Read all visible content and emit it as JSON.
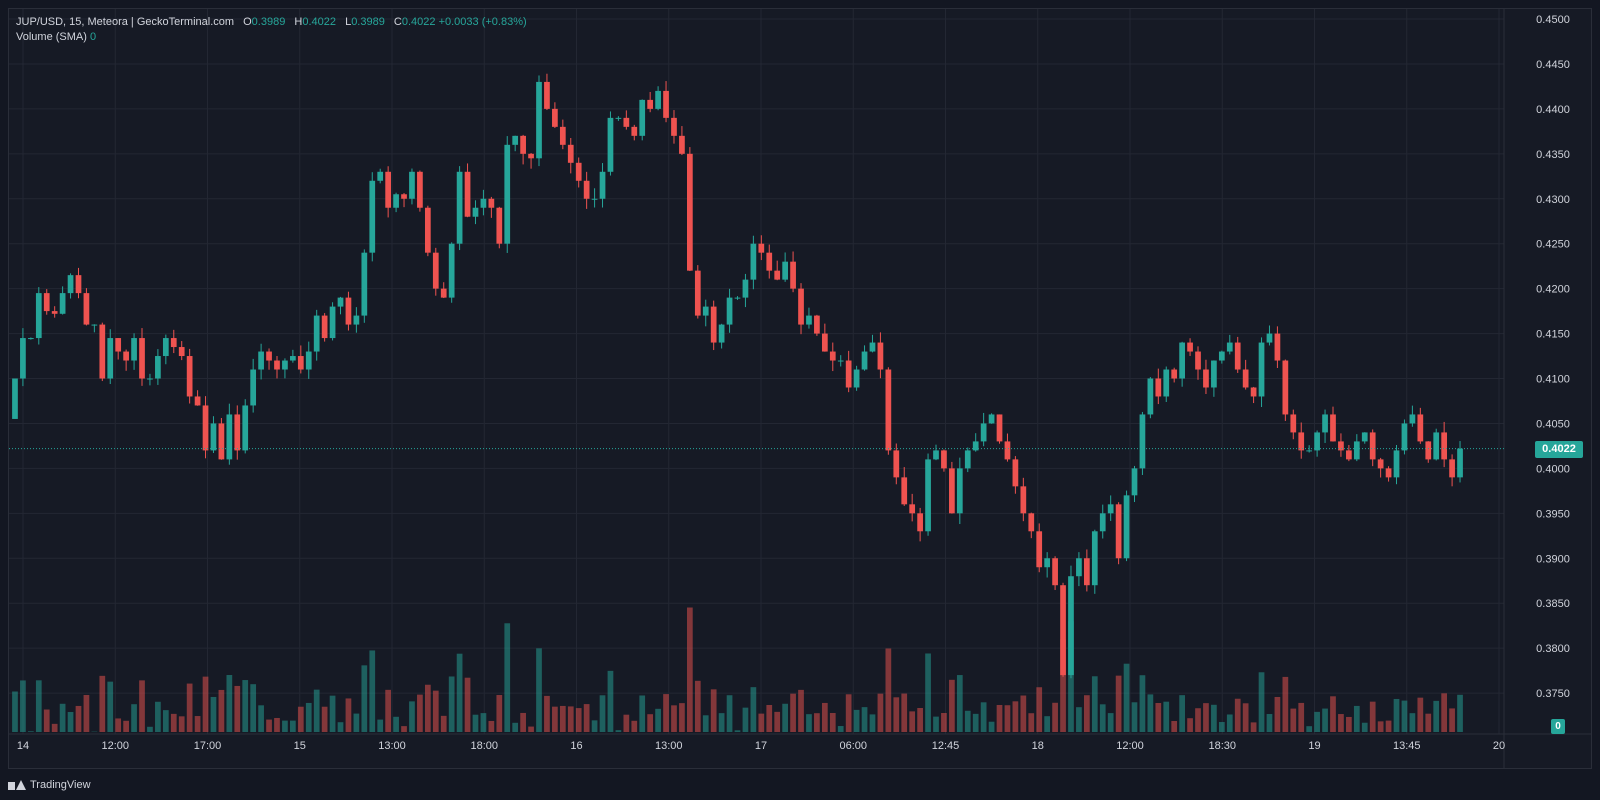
{
  "legend": {
    "symbol": "JUP/USD, 15, Meteora | GeckoTerminal.com",
    "o_label": "O",
    "o_value": "0.3989",
    "h_label": "H",
    "h_value": "0.4022",
    "l_label": "L",
    "l_value": "0.3989",
    "c_label": "C",
    "c_value": "0.4022",
    "change": "+0.0033 (+0.83%)",
    "volume_label": "Volume (SMA)",
    "volume_value": "0"
  },
  "current_price_tag": "0.4022",
  "volume_tag": "0",
  "footer": {
    "brand": "TradingView"
  },
  "colors": {
    "up": "#26a69a",
    "down": "#ef5350",
    "grid": "#232733",
    "bg": "#161a25"
  },
  "chart_data": {
    "type": "candlestick",
    "title": "JUP/USD, 15, Meteora | GeckoTerminal.com",
    "ylim": [
      0.37,
      0.45
    ],
    "y_ticks": [
      "0.4500",
      "0.4450",
      "0.4400",
      "0.4350",
      "0.4300",
      "0.4250",
      "0.4200",
      "0.4150",
      "0.4100",
      "0.4050",
      "0.4000",
      "0.3950",
      "0.3900",
      "0.3850",
      "0.3800",
      "0.3750"
    ],
    "x_ticks": [
      "14",
      "12:00",
      "17:00",
      "15",
      "13:00",
      "18:00",
      "16",
      "13:00",
      "17",
      "06:00",
      "12:45",
      "18",
      "12:00",
      "18:30",
      "19",
      "13:45",
      "20"
    ],
    "last_price": 0.4022,
    "closes": [
      0.41,
      0.4145,
      0.4145,
      0.4195,
      0.4175,
      0.4172,
      0.4195,
      0.4215,
      0.4195,
      0.416,
      0.416,
      0.41,
      0.4145,
      0.413,
      0.412,
      0.4145,
      0.41,
      0.41,
      0.4125,
      0.4145,
      0.4135,
      0.4125,
      0.408,
      0.407,
      0.402,
      0.405,
      0.401,
      0.406,
      0.402,
      0.407,
      0.411,
      0.413,
      0.412,
      0.411,
      0.412,
      0.4125,
      0.411,
      0.413,
      0.417,
      0.4145,
      0.418,
      0.419,
      0.416,
      0.417,
      0.424,
      0.432,
      0.433,
      0.429,
      0.4305,
      0.43,
      0.433,
      0.429,
      0.424,
      0.42,
      0.419,
      0.425,
      0.433,
      0.428,
      0.429,
      0.43,
      0.429,
      0.425,
      0.436,
      0.437,
      0.435,
      0.4345,
      0.443,
      0.44,
      0.438,
      0.436,
      0.434,
      0.432,
      0.43,
      0.43,
      0.433,
      0.439,
      0.439,
      0.438,
      0.437,
      0.441,
      0.44,
      0.442,
      0.439,
      0.437,
      0.435,
      0.422,
      0.417,
      0.418,
      0.414,
      0.416,
      0.419,
      0.419,
      0.421,
      0.425,
      0.424,
      0.422,
      0.421,
      0.423,
      0.42,
      0.416,
      0.417,
      0.415,
      0.413,
      0.412,
      0.412,
      0.409,
      0.411,
      0.413,
      0.414,
      0.411,
      0.402,
      0.399,
      0.396,
      0.395,
      0.393,
      0.401,
      0.402,
      0.4,
      0.395,
      0.4,
      0.402,
      0.403,
      0.405,
      0.406,
      0.403,
      0.401,
      0.398,
      0.395,
      0.393,
      0.389,
      0.39,
      0.387,
      0.377,
      0.388,
      0.39,
      0.387,
      0.393,
      0.395,
      0.396,
      0.39,
      0.397,
      0.4,
      0.406,
      0.41,
      0.408,
      0.411,
      0.41,
      0.414,
      0.413,
      0.411,
      0.409,
      0.412,
      0.413,
      0.414,
      0.411,
      0.409,
      0.408,
      0.414,
      0.415,
      0.412,
      0.406,
      0.404,
      0.402,
      0.402,
      0.404,
      0.406,
      0.403,
      0.402,
      0.401,
      0.403,
      0.404,
      0.401,
      0.4,
      0.399,
      0.402,
      0.405,
      0.406,
      0.403,
      0.401,
      0.404,
      0.401,
      0.399,
      0.4022
    ]
  }
}
